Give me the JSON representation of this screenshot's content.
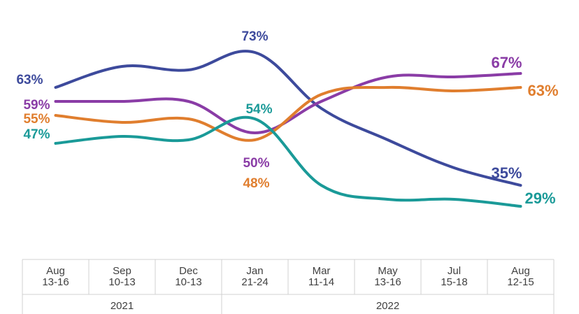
{
  "chart_data": {
    "type": "line",
    "categories": [
      [
        "Aug",
        "13-16"
      ],
      [
        "Sep",
        "10-13"
      ],
      [
        "Dec",
        "10-13"
      ],
      [
        "Jan",
        "21-24"
      ],
      [
        "Mar",
        "11-14"
      ],
      [
        "May",
        "13-16"
      ],
      [
        "Jul",
        "15-18"
      ],
      [
        "Aug",
        "12-15"
      ]
    ],
    "year_groups": [
      {
        "label": "2021",
        "start": 0,
        "end": 2
      },
      {
        "label": "2022",
        "start": 3,
        "end": 7
      }
    ],
    "series": [
      {
        "color": "#3d4a9c",
        "values": [
          63,
          69,
          68,
          73,
          57,
          48,
          40,
          35
        ]
      },
      {
        "color": "#8a3ca6",
        "values": [
          59,
          59,
          59,
          50,
          59,
          66,
          66,
          67
        ]
      },
      {
        "color": "#e07e2e",
        "values": [
          55,
          53,
          54,
          48,
          61,
          63,
          62,
          63
        ]
      },
      {
        "color": "#1a9a98",
        "values": [
          47,
          49,
          48,
          54,
          35,
          31,
          31,
          29
        ]
      }
    ],
    "labels": [
      {
        "series": 0,
        "point": 0,
        "text": "63%"
      },
      {
        "series": 0,
        "point": 3,
        "text": "73%"
      },
      {
        "series": 0,
        "point": 7,
        "text": "35%"
      },
      {
        "series": 1,
        "point": 0,
        "text": "59%"
      },
      {
        "series": 1,
        "point": 3,
        "text": "50%"
      },
      {
        "series": 1,
        "point": 7,
        "text": "67%"
      },
      {
        "series": 2,
        "point": 0,
        "text": "55%"
      },
      {
        "series": 2,
        "point": 3,
        "text": "48%"
      },
      {
        "series": 2,
        "point": 7,
        "text": "63%"
      },
      {
        "series": 3,
        "point": 0,
        "text": "47%"
      },
      {
        "series": 3,
        "point": 3,
        "text": "54%"
      },
      {
        "series": 3,
        "point": 7,
        "text": "29%"
      }
    ],
    "title": "",
    "xlabel": "",
    "ylabel": "",
    "ylim": [
      20,
      80
    ],
    "grid": false,
    "legend": "none"
  }
}
